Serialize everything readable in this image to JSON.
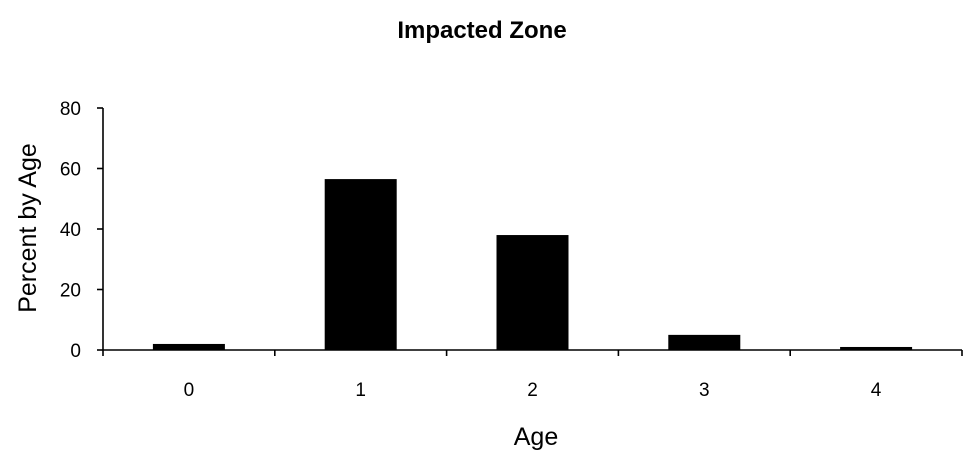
{
  "chart_data": {
    "type": "bar",
    "title": "Impacted Zone",
    "xlabel": "Age",
    "ylabel": "Percent by Age",
    "categories": [
      "0",
      "1",
      "2",
      "3",
      "4"
    ],
    "values": [
      2,
      56.5,
      38,
      5,
      1
    ],
    "ylim": [
      0,
      80
    ],
    "yticks": [
      "0",
      "20",
      "40",
      "60",
      "80"
    ],
    "grid": false,
    "legend": "none",
    "bar_color": "#000000"
  }
}
